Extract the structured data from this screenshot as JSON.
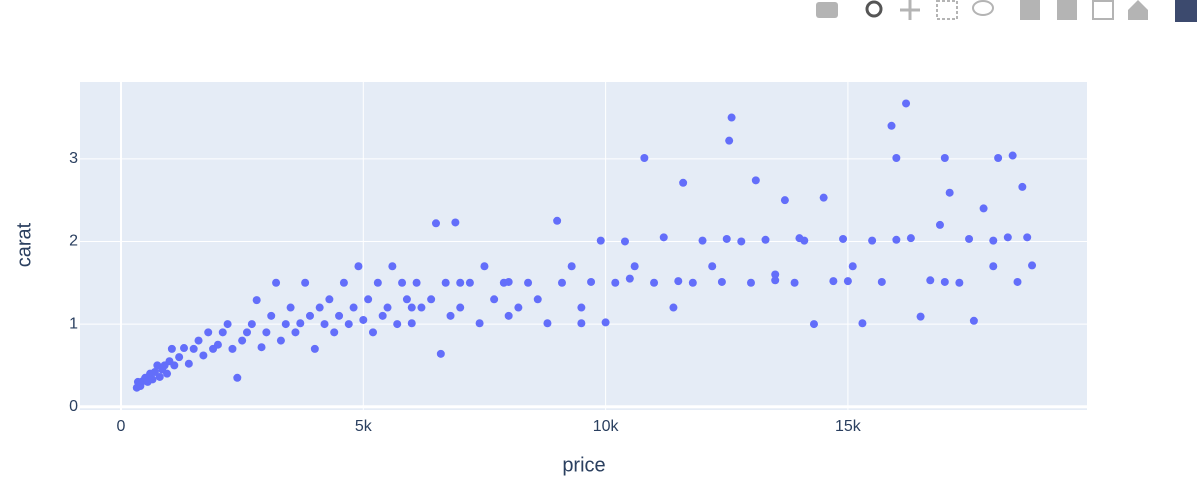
{
  "chart_data": {
    "type": "scatter",
    "xlabel": "price",
    "ylabel": "carat",
    "color": "#636efa",
    "grid": true,
    "xlim": [
      -846,
      19934
    ],
    "ylim": [
      -0.04,
      3.93
    ],
    "xticks": [
      0,
      {
        "value": 5000,
        "label": "5k"
      },
      {
        "value": 10000,
        "label": "10k"
      },
      {
        "value": 15000,
        "label": "15k"
      }
    ],
    "yticks": [
      0,
      1,
      2,
      3
    ],
    "x": [
      326,
      350,
      400,
      450,
      500,
      550,
      600,
      650,
      700,
      750,
      800,
      850,
      900,
      950,
      1000,
      1050,
      1100,
      1200,
      1300,
      1400,
      1500,
      1600,
      1700,
      1800,
      1900,
      2000,
      2100,
      2200,
      2300,
      2400,
      2500,
      2600,
      2700,
      2800,
      2900,
      3000,
      3100,
      3200,
      3300,
      3400,
      3500,
      3600,
      3700,
      3800,
      3900,
      4000,
      4100,
      4200,
      4300,
      4400,
      4500,
      4600,
      4700,
      4800,
      4900,
      5000,
      5100,
      5200,
      5300,
      5400,
      5500,
      5600,
      5700,
      5800,
      5900,
      6000,
      6100,
      6200,
      6400,
      6500,
      6600,
      6700,
      6800,
      6900,
      7000,
      7200,
      7400,
      7500,
      7700,
      7900,
      8000,
      8200,
      8400,
      8600,
      8800,
      9000,
      9100,
      9300,
      9500,
      9700,
      9900,
      10000,
      10200,
      10400,
      10600,
      10800,
      11000,
      11200,
      11400,
      11600,
      11800,
      12000,
      12200,
      12400,
      12550,
      12600,
      12800,
      13000,
      13100,
      13300,
      13500,
      13700,
      13900,
      14100,
      14300,
      14500,
      14700,
      14900,
      15100,
      15300,
      15500,
      15700,
      15900,
      16000,
      16200,
      16300,
      16500,
      16700,
      16900,
      17000,
      17100,
      17300,
      17500,
      17600,
      17800,
      18000,
      18100,
      18300,
      18400,
      18500,
      18600,
      18700,
      18800,
      10500,
      11500,
      12500,
      13500,
      14000,
      15000,
      16000,
      17000,
      18000,
      8000,
      7000,
      6000,
      9500
    ],
    "y": [
      0.23,
      0.3,
      0.25,
      0.31,
      0.35,
      0.3,
      0.4,
      0.33,
      0.42,
      0.5,
      0.36,
      0.45,
      0.5,
      0.4,
      0.55,
      0.7,
      0.5,
      0.6,
      0.71,
      0.52,
      0.7,
      0.8,
      0.62,
      0.9,
      0.7,
      0.75,
      0.9,
      1.0,
      0.7,
      0.35,
      0.8,
      0.9,
      1.0,
      1.29,
      0.72,
      0.9,
      1.1,
      1.5,
      0.8,
      1.0,
      1.2,
      0.9,
      1.01,
      1.5,
      1.1,
      0.7,
      1.2,
      1.0,
      1.3,
      0.9,
      1.1,
      1.5,
      1.0,
      1.2,
      1.7,
      1.05,
      1.3,
      0.9,
      1.5,
      1.1,
      1.2,
      1.7,
      1.0,
      1.5,
      1.3,
      1.01,
      1.5,
      1.2,
      1.3,
      2.22,
      0.64,
      1.5,
      1.1,
      2.23,
      1.2,
      1.5,
      1.01,
      1.7,
      1.3,
      1.5,
      1.1,
      1.2,
      1.5,
      1.3,
      1.01,
      2.25,
      1.5,
      1.7,
      1.2,
      1.51,
      2.01,
      1.02,
      1.5,
      2.0,
      1.7,
      3.01,
      1.5,
      2.05,
      1.2,
      2.71,
      1.5,
      2.01,
      1.7,
      1.51,
      3.22,
      3.5,
      2.0,
      1.5,
      2.74,
      2.02,
      1.6,
      2.5,
      1.5,
      2.01,
      1.0,
      2.53,
      1.52,
      2.03,
      1.7,
      1.01,
      2.01,
      1.51,
      3.4,
      3.01,
      3.67,
      2.04,
      1.09,
      1.53,
      2.2,
      3.01,
      2.59,
      1.5,
      2.03,
      1.04,
      2.4,
      1.7,
      3.01,
      2.05,
      3.04,
      1.51,
      2.66,
      2.05,
      1.71,
      1.55,
      1.52,
      2.03,
      1.53,
      2.04,
      1.52,
      2.02,
      1.51,
      2.01,
      1.51,
      1.5,
      1.2,
      1.01
    ]
  }
}
